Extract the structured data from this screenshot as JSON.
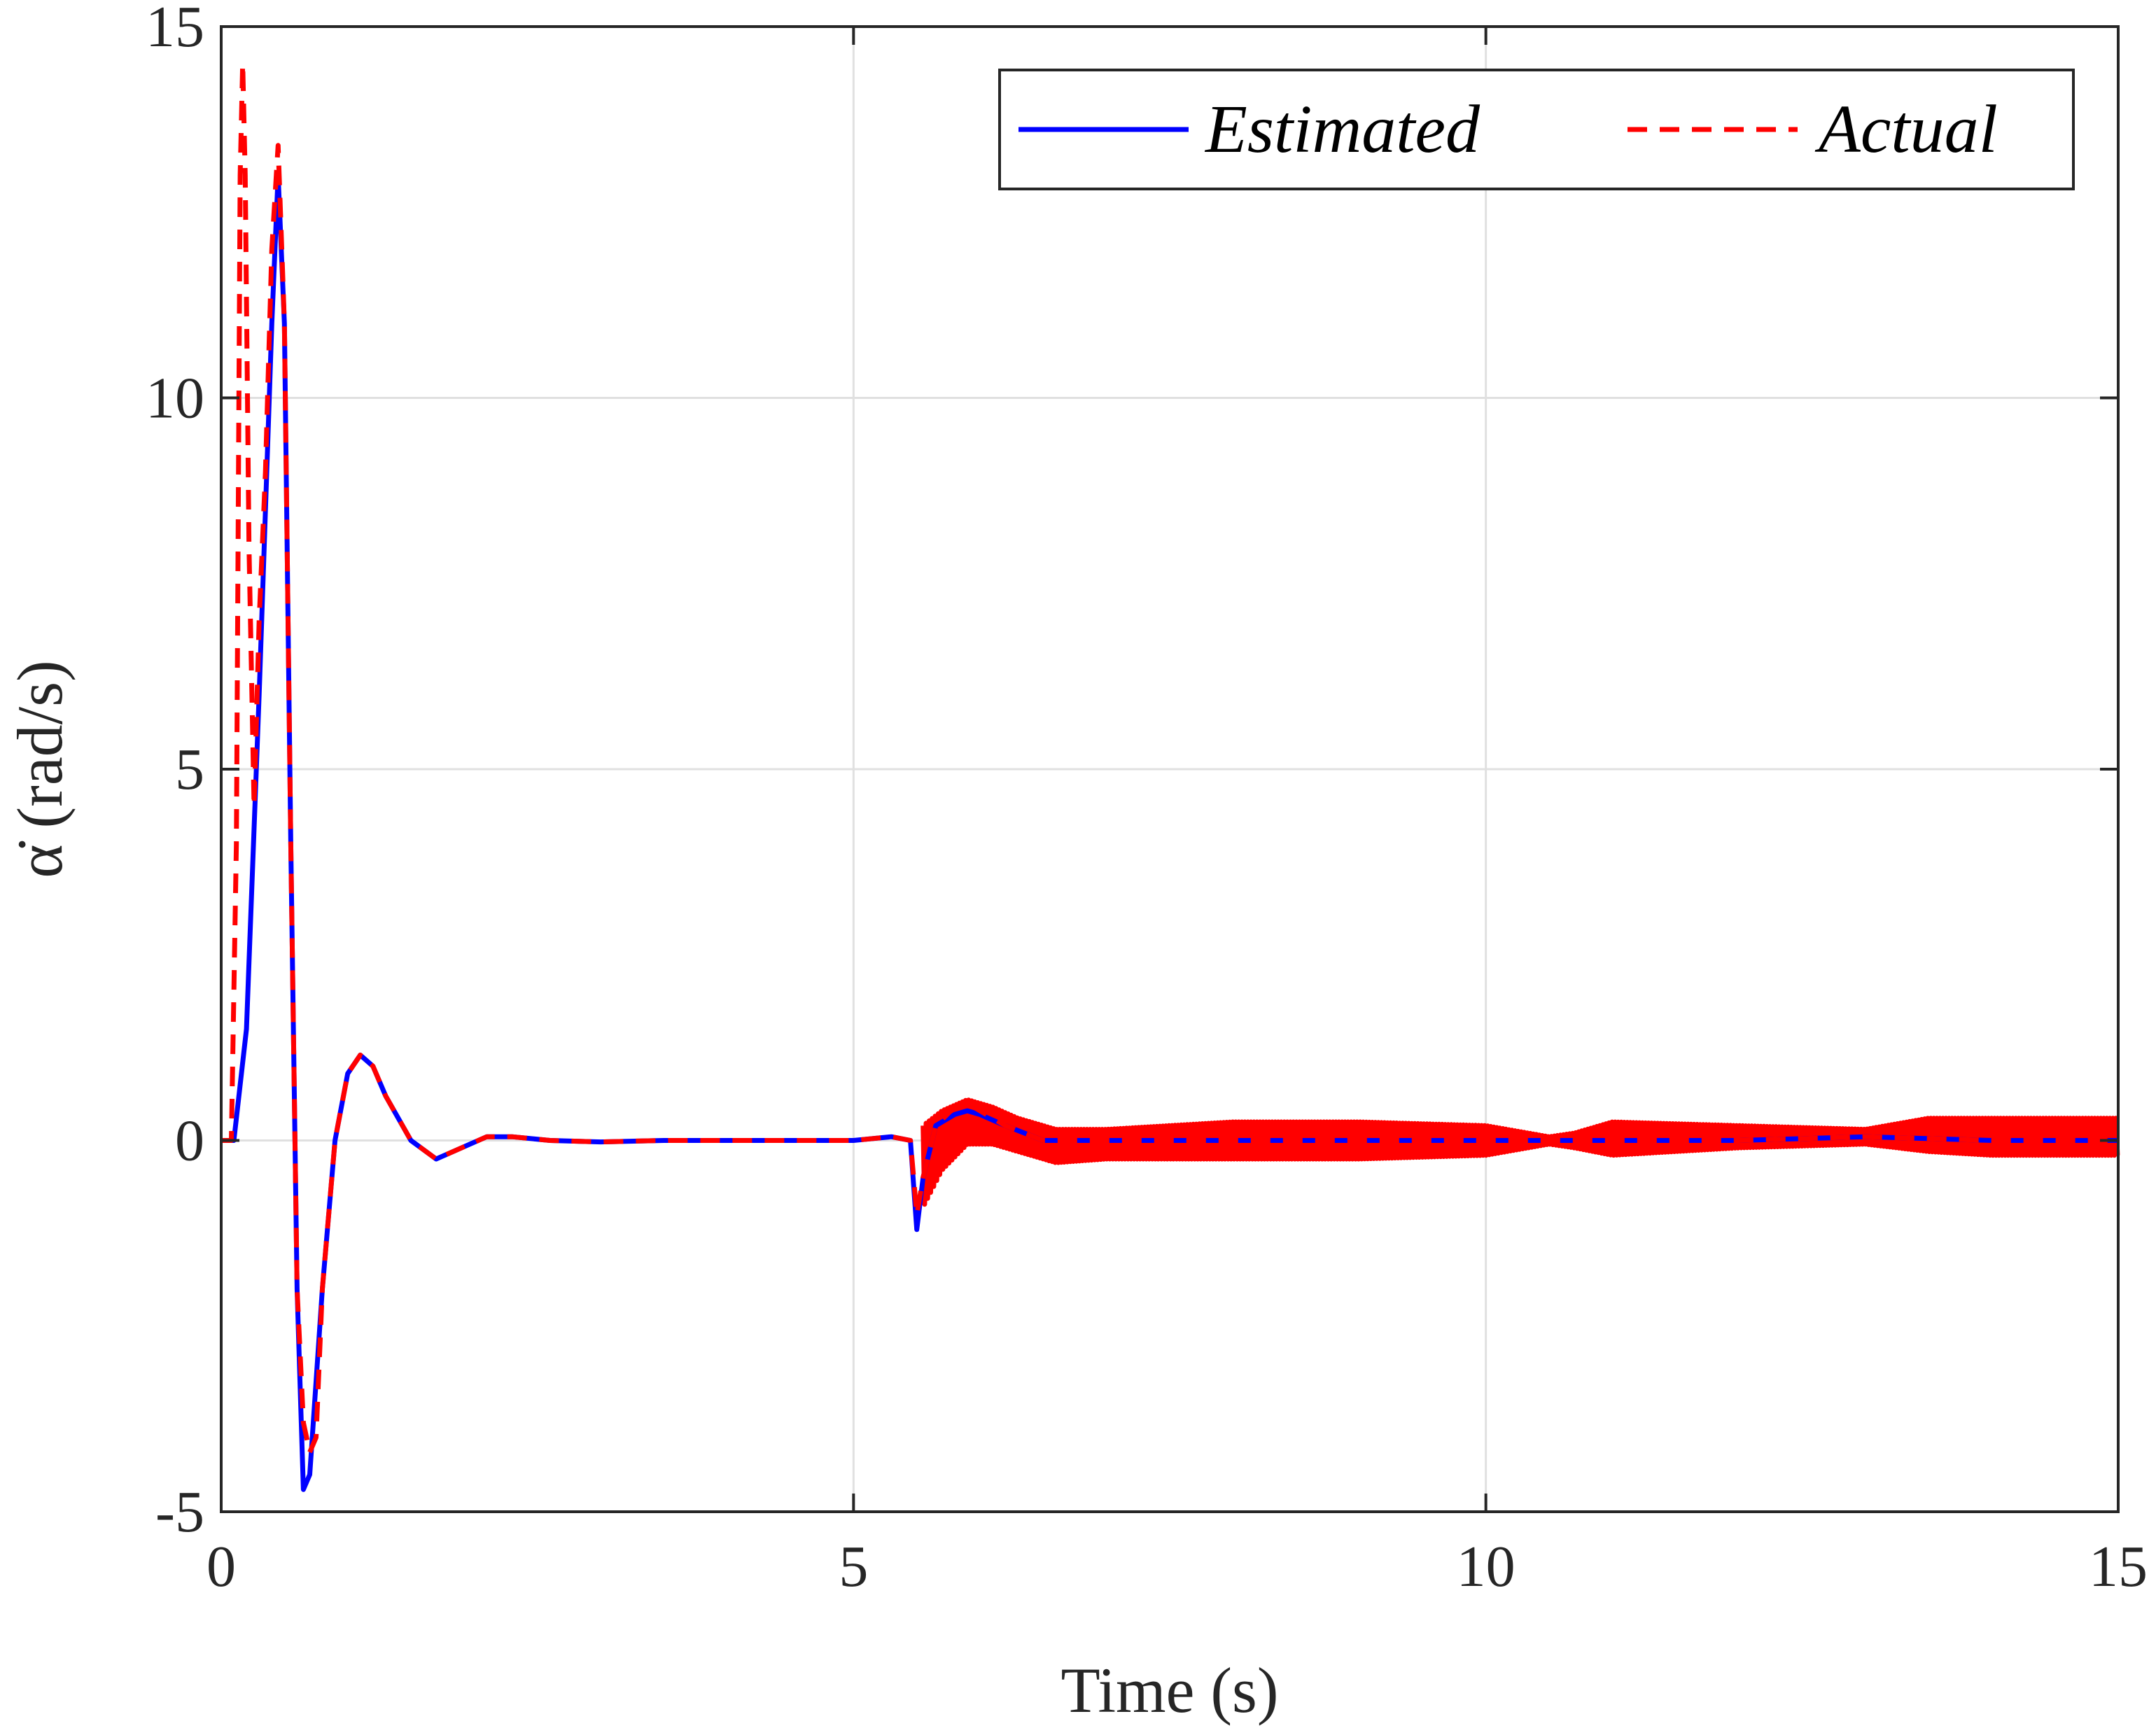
{
  "chart_data": {
    "type": "line",
    "title": "",
    "xlabel": "Time (s)",
    "ylabel": "α̇ (rad/s)",
    "xlim": [
      0,
      15
    ],
    "ylim": [
      -5,
      15
    ],
    "x_ticks": [
      0,
      5,
      10,
      15
    ],
    "y_ticks": [
      -5,
      0,
      5,
      10,
      15
    ],
    "x_tick_labels": [
      "0",
      "5",
      "10",
      "15"
    ],
    "y_tick_labels": [
      "-5",
      "0",
      "5",
      "10",
      "15"
    ],
    "grid": true,
    "legend_position": "top-right",
    "colors": {
      "estimated": "#0000ff",
      "actual": "#ff0000",
      "axes": "#262626",
      "grid": "#e0e0e0"
    },
    "series": [
      {
        "name": "Estimated",
        "style": "solid",
        "points": [
          [
            0,
            0
          ],
          [
            0.1,
            0
          ],
          [
            0.2,
            1.5
          ],
          [
            0.3,
            6
          ],
          [
            0.4,
            11
          ],
          [
            0.45,
            13
          ],
          [
            0.5,
            11
          ],
          [
            0.55,
            4
          ],
          [
            0.6,
            -2
          ],
          [
            0.65,
            -4.7
          ],
          [
            0.7,
            -4.5
          ],
          [
            0.8,
            -2
          ],
          [
            0.9,
            0
          ],
          [
            1.0,
            0.9
          ],
          [
            1.1,
            1.15
          ],
          [
            1.2,
            1.0
          ],
          [
            1.3,
            0.6
          ],
          [
            1.5,
            0
          ],
          [
            1.7,
            -0.25
          ],
          [
            1.9,
            -0.1
          ],
          [
            2.1,
            0.05
          ],
          [
            2.3,
            0.05
          ],
          [
            2.6,
            0
          ],
          [
            3.0,
            -0.02
          ],
          [
            3.5,
            0
          ],
          [
            4.0,
            0
          ],
          [
            5.0,
            0
          ],
          [
            5.3,
            0.05
          ],
          [
            5.45,
            0.0
          ],
          [
            5.5,
            -1.2
          ],
          [
            5.55,
            -0.5
          ],
          [
            5.65,
            0.2
          ],
          [
            5.8,
            0.35
          ],
          [
            5.9,
            0.4
          ],
          [
            6.0,
            0.35
          ],
          [
            6.2,
            0.2
          ],
          [
            6.5,
            0
          ],
          [
            7,
            0
          ],
          [
            8,
            0
          ],
          [
            9,
            0
          ],
          [
            10,
            0
          ],
          [
            10.5,
            0
          ],
          [
            11,
            0
          ],
          [
            12,
            0
          ],
          [
            13,
            0.05
          ],
          [
            14,
            0
          ],
          [
            15,
            0
          ]
        ]
      },
      {
        "name": "Actual",
        "style": "dashed",
        "points": [
          [
            0,
            0
          ],
          [
            0.08,
            0
          ],
          [
            0.12,
            4
          ],
          [
            0.15,
            13
          ],
          [
            0.17,
            14.5
          ],
          [
            0.19,
            13
          ],
          [
            0.22,
            8
          ],
          [
            0.26,
            4.5
          ],
          [
            0.3,
            7
          ],
          [
            0.35,
            9
          ],
          [
            0.4,
            12
          ],
          [
            0.45,
            13.4
          ],
          [
            0.5,
            11
          ],
          [
            0.55,
            4
          ],
          [
            0.6,
            -2
          ],
          [
            0.65,
            -3.8
          ],
          [
            0.7,
            -4.2
          ],
          [
            0.75,
            -4.0
          ],
          [
            0.8,
            -2
          ],
          [
            0.9,
            0
          ],
          [
            1.0,
            0.9
          ],
          [
            1.1,
            1.15
          ],
          [
            1.2,
            1.0
          ],
          [
            1.3,
            0.6
          ],
          [
            1.5,
            0
          ],
          [
            1.7,
            -0.25
          ],
          [
            1.9,
            -0.1
          ],
          [
            2.1,
            0.05
          ],
          [
            2.3,
            0.05
          ],
          [
            2.6,
            0
          ],
          [
            3.0,
            -0.02
          ],
          [
            3.5,
            0
          ],
          [
            4.0,
            0
          ],
          [
            5.0,
            0
          ],
          [
            5.3,
            0.05
          ],
          [
            5.45,
            0.0
          ],
          [
            5.5,
            -1.0
          ],
          [
            5.55,
            -0.5
          ],
          [
            5.65,
            0.2
          ],
          [
            5.8,
            0.45
          ],
          [
            5.9,
            0.5
          ],
          [
            6.0,
            0.4
          ],
          [
            6.2,
            0.2
          ],
          [
            6.5,
            0
          ],
          [
            7,
            0
          ],
          [
            8,
            0
          ],
          [
            9,
            0
          ],
          [
            10,
            0
          ],
          [
            10.5,
            0
          ],
          [
            11,
            0
          ],
          [
            12,
            0
          ],
          [
            13,
            0.05
          ],
          [
            14,
            0
          ],
          [
            15,
            0
          ]
        ]
      }
    ],
    "oscillation_band": {
      "series": "Actual",
      "x_start": 5.55,
      "x_end": 15,
      "envelope": [
        [
          5.55,
          -0.9,
          0.2
        ],
        [
          5.7,
          -0.4,
          0.4
        ],
        [
          5.9,
          -0.05,
          0.55
        ],
        [
          6.1,
          -0.05,
          0.45
        ],
        [
          6.3,
          -0.15,
          0.3
        ],
        [
          6.6,
          -0.3,
          0.15
        ],
        [
          7.0,
          -0.25,
          0.15
        ],
        [
          8.0,
          -0.25,
          0.25
        ],
        [
          9.0,
          -0.25,
          0.25
        ],
        [
          10.0,
          -0.2,
          0.2
        ],
        [
          10.5,
          -0.05,
          0.05
        ],
        [
          10.7,
          -0.1,
          0.1
        ],
        [
          11.0,
          -0.2,
          0.25
        ],
        [
          12.0,
          -0.1,
          0.2
        ],
        [
          13.0,
          -0.05,
          0.15
        ],
        [
          13.5,
          -0.15,
          0.3
        ],
        [
          14.0,
          -0.2,
          0.3
        ],
        [
          15.0,
          -0.2,
          0.3
        ]
      ]
    }
  }
}
